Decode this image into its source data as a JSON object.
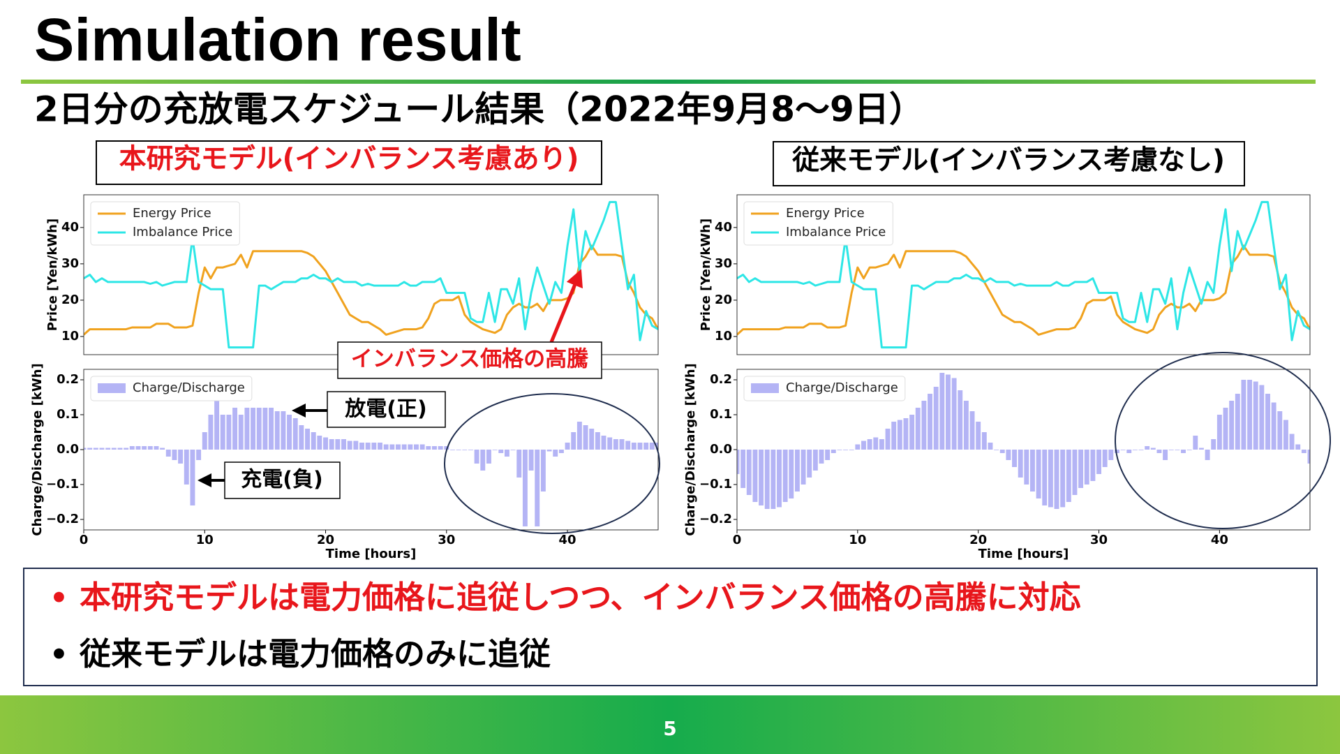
{
  "title": "Simulation result",
  "subtitle": "2日分の充放電スケジュール結果（2022年9月8〜9日）",
  "panel_titles": [
    "本研究モデル(インバランス考慮あり)",
    "従来モデル(インバランス考慮なし)"
  ],
  "annotations": {
    "price_spike": "インバランス価格の高騰",
    "discharge": "放電(正)",
    "charge": "充電(負)"
  },
  "bullets": [
    "本研究モデルは電力価格に追従しつつ、インバランス価格の高騰に対応",
    "従来モデルは電力価格のみに追従"
  ],
  "bullet_marker": "•",
  "page_number": "5",
  "chart_data": [
    {
      "type": "line",
      "ylabel": "Price [Yen/kWh]",
      "legend": "upper left",
      "xlim": [
        0,
        47.5
      ],
      "ylim": [
        5,
        49
      ],
      "yticks": [
        10,
        20,
        30,
        40
      ],
      "x": [
        0,
        0.5,
        1,
        1.5,
        2,
        2.5,
        3,
        3.5,
        4,
        4.5,
        5,
        5.5,
        6,
        6.5,
        7,
        7.5,
        8,
        8.5,
        9,
        9.5,
        10,
        10.5,
        11,
        11.5,
        12,
        12.5,
        13,
        13.5,
        14,
        14.5,
        15,
        15.5,
        16,
        16.5,
        17,
        17.5,
        18,
        18.5,
        19,
        19.5,
        20,
        20.5,
        21,
        21.5,
        22,
        22.5,
        23,
        23.5,
        24,
        24.5,
        25,
        25.5,
        26,
        26.5,
        27,
        27.5,
        28,
        28.5,
        29,
        29.5,
        30,
        30.5,
        31,
        31.5,
        32,
        32.5,
        33,
        33.5,
        34,
        34.5,
        35,
        35.5,
        36,
        36.5,
        37,
        37.5,
        38,
        38.5,
        39,
        39.5,
        40,
        40.5,
        41,
        41.5,
        42,
        42.5,
        43,
        43.5,
        44,
        44.5,
        45,
        45.5,
        46,
        46.5,
        47,
        47.5
      ],
      "series": [
        {
          "name": "Energy Price",
          "color": "#f0a21e",
          "values": [
            10.5,
            12,
            12,
            12,
            12,
            12,
            12,
            12,
            12.5,
            12.5,
            12.5,
            12.5,
            13.5,
            13.5,
            13.5,
            12.5,
            12.5,
            12.5,
            13,
            22,
            29,
            26,
            29,
            29,
            29.5,
            30,
            32.5,
            29,
            33.5,
            33.5,
            33.5,
            33.5,
            33.5,
            33.5,
            33.5,
            33.5,
            33.5,
            33,
            32,
            30,
            28,
            25,
            22,
            19,
            16,
            15,
            14,
            14,
            13,
            12,
            10.5,
            11,
            11.5,
            12,
            12,
            12,
            12.5,
            15,
            19,
            20,
            20,
            20,
            21,
            16,
            14,
            13,
            12,
            11.5,
            11,
            12,
            16,
            18,
            19,
            18,
            18,
            19,
            17,
            20,
            20,
            20,
            20.5,
            22,
            30,
            32,
            35,
            32.5,
            32.5,
            32.5,
            32.5,
            32,
            25,
            22,
            18,
            16,
            15,
            12
          ]
        },
        {
          "name": "Imbalance Price",
          "color": "#2de6e6",
          "values": [
            26,
            27,
            25,
            26,
            25,
            25,
            25,
            25,
            25,
            25,
            25,
            24.5,
            25,
            24,
            24.5,
            25,
            25,
            25,
            37,
            25,
            24,
            23,
            23,
            23,
            7,
            7,
            7,
            7,
            7,
            24,
            24,
            23,
            24,
            25,
            25,
            25,
            26,
            26,
            27,
            26,
            26,
            25,
            26,
            25,
            25,
            25,
            24,
            24.5,
            24,
            24,
            24,
            24,
            24,
            25,
            24,
            24,
            25,
            25,
            25,
            26,
            22,
            22,
            22,
            22,
            15,
            14,
            14,
            22,
            14,
            23,
            23,
            19,
            26,
            12,
            22,
            29,
            24,
            19,
            25,
            22,
            35,
            45,
            28,
            39,
            34,
            38,
            42,
            47,
            47,
            35,
            23,
            27,
            9,
            17,
            13,
            12
          ]
        }
      ]
    },
    {
      "type": "bar",
      "ylabel": "Charge/Discharge [kWh]",
      "xlabel": "Time [hours]",
      "legend": "upper left",
      "xlim": [
        0,
        47.5
      ],
      "ylim": [
        -0.23,
        0.23
      ],
      "yticks": [
        {
          "value": -0.2,
          "label": "−0.2"
        },
        {
          "value": -0.1,
          "label": "−0.1"
        },
        {
          "value": 0,
          "label": "0.0"
        },
        0.1,
        0.2
      ],
      "xticks": [
        0,
        10,
        20,
        30,
        40
      ],
      "x": [
        0,
        0.5,
        1,
        1.5,
        2,
        2.5,
        3,
        3.5,
        4,
        4.5,
        5,
        5.5,
        6,
        6.5,
        7,
        7.5,
        8,
        8.5,
        9,
        9.5,
        10,
        10.5,
        11,
        11.5,
        12,
        12.5,
        13,
        13.5,
        14,
        14.5,
        15,
        15.5,
        16,
        16.5,
        17,
        17.5,
        18,
        18.5,
        19,
        19.5,
        20,
        20.5,
        21,
        21.5,
        22,
        22.5,
        23,
        23.5,
        24,
        24.5,
        25,
        25.5,
        26,
        26.5,
        27,
        27.5,
        28,
        28.5,
        29,
        29.5,
        30,
        30.5,
        31,
        31.5,
        32,
        32.5,
        33,
        33.5,
        34,
        34.5,
        35,
        35.5,
        36,
        36.5,
        37,
        37.5,
        38,
        38.5,
        39,
        39.5,
        40,
        40.5,
        41,
        41.5,
        42,
        42.5,
        43,
        43.5,
        44,
        44.5,
        45,
        45.5,
        46,
        46.5,
        47,
        47.5
      ],
      "series": [
        {
          "name": "Charge/Discharge",
          "color": "#b4b4f5",
          "values": [
            0.005,
            0.005,
            0.005,
            0.005,
            0.005,
            0.005,
            0.005,
            0.005,
            0.01,
            0.01,
            0.01,
            0.01,
            0.01,
            0.005,
            -0.02,
            -0.03,
            -0.04,
            -0.1,
            -0.16,
            -0.03,
            0.05,
            0.1,
            0.14,
            0.1,
            0.1,
            0.12,
            0.1,
            0.12,
            0.12,
            0.12,
            0.12,
            0.12,
            0.11,
            0.11,
            0.1,
            0.09,
            0.07,
            0.06,
            0.05,
            0.04,
            0.035,
            0.03,
            0.03,
            0.03,
            0.025,
            0.025,
            0.02,
            0.02,
            0.02,
            0.02,
            0.015,
            0.015,
            0.015,
            0.015,
            0.015,
            0.015,
            0.015,
            0.01,
            0.01,
            0.01,
            0.01,
            0,
            0,
            0,
            0,
            -0.04,
            -0.06,
            -0.04,
            0,
            -0.01,
            -0.02,
            0,
            -0.08,
            -0.22,
            -0.06,
            -0.22,
            -0.12,
            -0.005,
            -0.02,
            -0.01,
            0.02,
            0.05,
            0.08,
            0.07,
            0.06,
            0.05,
            0.04,
            0.035,
            0.03,
            0.03,
            0.025,
            0.02,
            0.02,
            0.02,
            0.02,
            0.02
          ]
        }
      ]
    },
    {
      "type": "line",
      "ylabel": "Price [Yen/kWh]",
      "legend": "upper left",
      "xlim": [
        0,
        47.5
      ],
      "ylim": [
        5,
        49
      ],
      "yticks": [
        10,
        20,
        30,
        40
      ],
      "x": [
        0,
        0.5,
        1,
        1.5,
        2,
        2.5,
        3,
        3.5,
        4,
        4.5,
        5,
        5.5,
        6,
        6.5,
        7,
        7.5,
        8,
        8.5,
        9,
        9.5,
        10,
        10.5,
        11,
        11.5,
        12,
        12.5,
        13,
        13.5,
        14,
        14.5,
        15,
        15.5,
        16,
        16.5,
        17,
        17.5,
        18,
        18.5,
        19,
        19.5,
        20,
        20.5,
        21,
        21.5,
        22,
        22.5,
        23,
        23.5,
        24,
        24.5,
        25,
        25.5,
        26,
        26.5,
        27,
        27.5,
        28,
        28.5,
        29,
        29.5,
        30,
        30.5,
        31,
        31.5,
        32,
        32.5,
        33,
        33.5,
        34,
        34.5,
        35,
        35.5,
        36,
        36.5,
        37,
        37.5,
        38,
        38.5,
        39,
        39.5,
        40,
        40.5,
        41,
        41.5,
        42,
        42.5,
        43,
        43.5,
        44,
        44.5,
        45,
        45.5,
        46,
        46.5,
        47,
        47.5
      ],
      "series": [
        {
          "name": "Energy Price",
          "color": "#f0a21e",
          "values": [
            10.5,
            12,
            12,
            12,
            12,
            12,
            12,
            12,
            12.5,
            12.5,
            12.5,
            12.5,
            13.5,
            13.5,
            13.5,
            12.5,
            12.5,
            12.5,
            13,
            22,
            29,
            26,
            29,
            29,
            29.5,
            30,
            32.5,
            29,
            33.5,
            33.5,
            33.5,
            33.5,
            33.5,
            33.5,
            33.5,
            33.5,
            33.5,
            33,
            32,
            30,
            28,
            25,
            22,
            19,
            16,
            15,
            14,
            14,
            13,
            12,
            10.5,
            11,
            11.5,
            12,
            12,
            12,
            12.5,
            15,
            19,
            20,
            20,
            20,
            21,
            16,
            14,
            13,
            12,
            11.5,
            11,
            12,
            16,
            18,
            19,
            18,
            18,
            19,
            17,
            20,
            20,
            20,
            20.5,
            22,
            30,
            32,
            35,
            32.5,
            32.5,
            32.5,
            32.5,
            32,
            25,
            22,
            18,
            16,
            15,
            12
          ]
        },
        {
          "name": "Imbalance Price",
          "color": "#2de6e6",
          "values": [
            26,
            27,
            25,
            26,
            25,
            25,
            25,
            25,
            25,
            25,
            25,
            24.5,
            25,
            24,
            24.5,
            25,
            25,
            25,
            37,
            25,
            24,
            23,
            23,
            23,
            7,
            7,
            7,
            7,
            7,
            24,
            24,
            23,
            24,
            25,
            25,
            25,
            26,
            26,
            27,
            26,
            26,
            25,
            26,
            25,
            25,
            25,
            24,
            24.5,
            24,
            24,
            24,
            24,
            24,
            25,
            24,
            24,
            25,
            25,
            25,
            26,
            22,
            22,
            22,
            22,
            15,
            14,
            14,
            22,
            14,
            23,
            23,
            19,
            26,
            12,
            22,
            29,
            24,
            19,
            25,
            22,
            35,
            45,
            28,
            39,
            34,
            38,
            42,
            47,
            47,
            35,
            23,
            27,
            9,
            17,
            13,
            12
          ]
        }
      ]
    },
    {
      "type": "bar",
      "ylabel": "Charge/Discharge [kWh]",
      "xlabel": "Time [hours]",
      "legend": "upper left",
      "xlim": [
        0,
        47.5
      ],
      "ylim": [
        -0.23,
        0.23
      ],
      "yticks": [
        {
          "value": -0.2,
          "label": "−0.2"
        },
        {
          "value": -0.1,
          "label": "−0.1"
        },
        {
          "value": 0,
          "label": "0.0"
        },
        0.1,
        0.2
      ],
      "xticks": [
        0,
        10,
        20,
        30,
        40
      ],
      "x": [
        0,
        0.5,
        1,
        1.5,
        2,
        2.5,
        3,
        3.5,
        4,
        4.5,
        5,
        5.5,
        6,
        6.5,
        7,
        7.5,
        8,
        8.5,
        9,
        9.5,
        10,
        10.5,
        11,
        11.5,
        12,
        12.5,
        13,
        13.5,
        14,
        14.5,
        15,
        15.5,
        16,
        16.5,
        17,
        17.5,
        18,
        18.5,
        19,
        19.5,
        20,
        20.5,
        21,
        21.5,
        22,
        22.5,
        23,
        23.5,
        24,
        24.5,
        25,
        25.5,
        26,
        26.5,
        27,
        27.5,
        28,
        28.5,
        29,
        29.5,
        30,
        30.5,
        31,
        31.5,
        32,
        32.5,
        33,
        33.5,
        34,
        34.5,
        35,
        35.5,
        36,
        36.5,
        37,
        37.5,
        38,
        38.5,
        39,
        39.5,
        40,
        40.5,
        41,
        41.5,
        42,
        42.5,
        43,
        43.5,
        44,
        44.5,
        45,
        45.5,
        46,
        46.5,
        47,
        47.5
      ],
      "series": [
        {
          "name": "Charge/Discharge",
          "color": "#b4b4f5",
          "values": [
            -0.07,
            -0.11,
            -0.13,
            -0.15,
            -0.16,
            -0.17,
            -0.17,
            -0.165,
            -0.15,
            -0.14,
            -0.12,
            -0.1,
            -0.08,
            -0.06,
            -0.04,
            -0.03,
            -0.01,
            0,
            0,
            0,
            0.015,
            0.025,
            0.03,
            0.035,
            0.03,
            0.06,
            0.08,
            0.085,
            0.09,
            0.1,
            0.12,
            0.14,
            0.16,
            0.18,
            0.22,
            0.215,
            0.205,
            0.17,
            0.14,
            0.11,
            0.08,
            0.05,
            0.02,
            0,
            -0.01,
            -0.03,
            -0.05,
            -0.08,
            -0.1,
            -0.12,
            -0.14,
            -0.16,
            -0.165,
            -0.17,
            -0.165,
            -0.15,
            -0.13,
            -0.11,
            -0.1,
            -0.09,
            -0.07,
            -0.05,
            -0.03,
            -0.01,
            0,
            -0.01,
            0,
            0,
            0.01,
            0.005,
            -0.01,
            -0.03,
            0,
            0,
            -0.01,
            0,
            0.04,
            0.005,
            -0.03,
            0.03,
            0.1,
            0.12,
            0.14,
            0.16,
            0.2,
            0.2,
            0.195,
            0.185,
            0.16,
            0.135,
            0.11,
            0.085,
            0.045,
            0.015,
            -0.01,
            -0.04
          ]
        }
      ]
    }
  ]
}
